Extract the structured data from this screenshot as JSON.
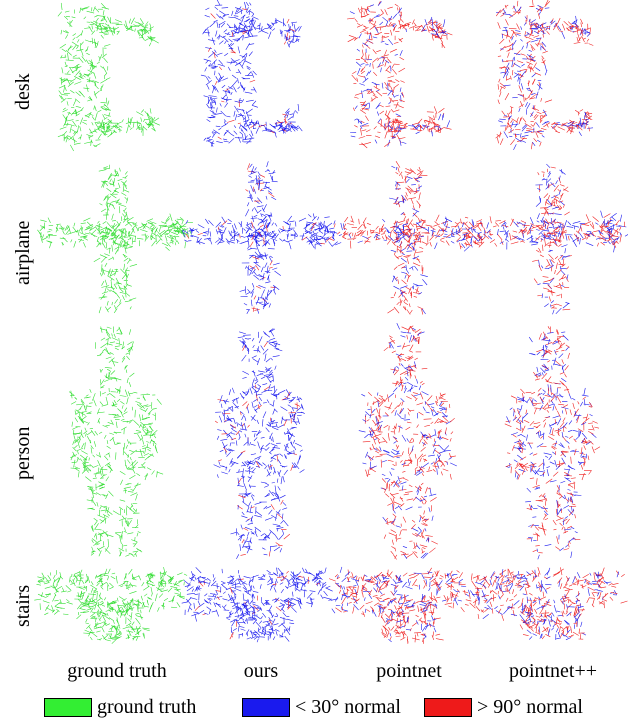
{
  "rows": [
    {
      "key": "desk",
      "label": "desk"
    },
    {
      "key": "airplane",
      "label": "airplane"
    },
    {
      "key": "person",
      "label": "person"
    },
    {
      "key": "stairs",
      "label": "stairs"
    }
  ],
  "columns": [
    {
      "key": "gt",
      "label": "ground truth"
    },
    {
      "key": "ours",
      "label": "ours"
    },
    {
      "key": "pointnet",
      "label": "pointnet"
    },
    {
      "key": "pointnetpp",
      "label": "pointnet++"
    }
  ],
  "legend": [
    {
      "label": "ground truth",
      "color": "#33ee33"
    },
    {
      "label": "< 30° normal",
      "color": "#1a1aee"
    },
    {
      "label": "> 90° normal",
      "color": "#ee1a1a"
    }
  ],
  "colors": {
    "green": "#33dd33",
    "blue": "#1a1aee",
    "red": "#ee2020"
  },
  "red_share": {
    "gt": 0,
    "ours": 0.08,
    "pointnet": 0.65,
    "pointnetpp": 0.6
  }
}
